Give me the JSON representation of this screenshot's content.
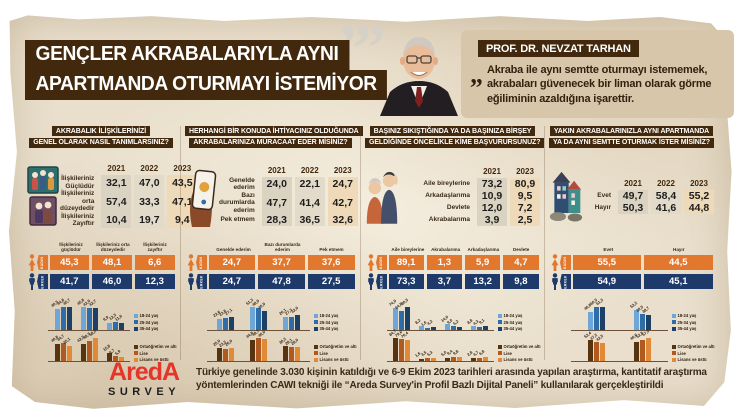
{
  "title": {
    "line1": "GENÇLER AKRABALARIYLA AYNI",
    "line2": "APARTMANDA OTURMAYI İSTEMİYOR"
  },
  "expert": {
    "name": "PROF. DR. NEVZAT TARHAN",
    "quote": "Akraba ile aynı semtte oturmayı istememek, akrabaları güvenecek bir liman olarak görme eğiliminin azaldığına işarettir."
  },
  "gender_labels": {
    "female": "KADIN",
    "male": "ERKEK"
  },
  "legend": {
    "age": [
      "18-24 yaş",
      "25-34 yaş",
      "35-44 yaş"
    ],
    "edu": [
      "Ortaöğretim ve altı",
      "Lise",
      "Lisans ve üstü"
    ]
  },
  "colors": {
    "brown": "#42280c",
    "female": "#e2772e",
    "male": "#1e3a6a",
    "age_series": [
      "#6ea6d8",
      "#2e6da8",
      "#1d4166"
    ],
    "edu_series": [
      "#58330f",
      "#b05a20",
      "#e08a38"
    ],
    "band_2021": "#dbd3c2",
    "band_2022": "#e3dbca",
    "band_2023": "#eed9b8",
    "logo_red": "#e5352b"
  },
  "chart_data": [
    {
      "type": "table",
      "title_lines": [
        "AKRABALIK İLİŞKİLERİNİZİ",
        "GENEL OLARAK NASIL TANIMLARSINIZ?"
      ],
      "icon": "family-photo-icon",
      "years": [
        "2021",
        "2022",
        "2023"
      ],
      "rows": [
        {
          "label": "İlişkileriniz Güçlüdür",
          "values": [
            32.1,
            47.0,
            43.5
          ]
        },
        {
          "label": "İlişkileriniz orta düzeydedir",
          "values": [
            57.4,
            33.3,
            47.1
          ]
        },
        {
          "label": "İlişkileriniz Zayıftır",
          "values": [
            10.4,
            19.7,
            9.4
          ]
        }
      ],
      "gender_columns": [
        "İlişkileriniz güçlüdür",
        "İlişkileriniz orta düzeydedir",
        "İlişkileriniz zayıftır"
      ],
      "female": [
        45.3,
        48.1,
        6.6
      ],
      "male": [
        41.7,
        46.0,
        12.3
      ],
      "age_groups": [
        [
          40.5,
          44.8,
          45.7
        ],
        [
          45.8,
          42.9,
          42.7
        ],
        [
          9.9,
          12.3,
          11.6
        ]
      ],
      "edu_groups": [
        [
          40.8,
          44.7,
          35.1
        ],
        [
          42.2,
          48.7,
          58.2
        ],
        [
          15.8,
          8.7,
          5.9
        ]
      ]
    },
    {
      "type": "table",
      "title_lines": [
        "HERHANGİ BİR KONUDA İHTİYACINIZ OLDUĞUNDA",
        "AKRABALARINIZA MÜRACAAT EDER MİSİNİZ?"
      ],
      "icon": "phone-hand-icon",
      "years": [
        "2021",
        "2022",
        "2023"
      ],
      "rows": [
        {
          "label": "Genelde ederim",
          "values": [
            24.0,
            22.1,
            24.7
          ]
        },
        {
          "label": "Bazı durumlarda ederim",
          "values": [
            47.7,
            41.4,
            42.7
          ]
        },
        {
          "label": "Pek etmem",
          "values": [
            28.3,
            36.5,
            32.6
          ]
        }
      ],
      "gender_columns": [
        "Genelde ederim",
        "Bazı durumlarda ederim",
        "Pek etmem"
      ],
      "female": [
        24.7,
        37.7,
        37.6
      ],
      "male": [
        24.7,
        47.8,
        27.5
      ],
      "age_groups": [
        [
          22.6,
          23.8,
          27.1
        ],
        [
          51.3,
          48.9,
          40.9
        ],
        [
          26.1,
          27.3,
          32.0
        ]
      ],
      "edu_groups": [
        [
          25.0,
          23.2,
          26.0
        ],
        [
          44.8,
          48.7,
          46.0
        ],
        [
          30.2,
          28.1,
          28.0
        ]
      ]
    },
    {
      "type": "table",
      "title_lines": [
        "BAŞINIZ SIKIŞTIĞINDA YA DA BAŞINIZA BİRŞEY",
        "GELDİĞİNDE ÖNCELİKLE KİME BAŞVURURSUNUZ?"
      ],
      "icon": "elderly-couple-icon",
      "years": [
        "2021",
        "2023"
      ],
      "rows": [
        {
          "label": "Aile bireylerine",
          "values": [
            73.2,
            80.9
          ]
        },
        {
          "label": "Arkadaşlarıma",
          "values": [
            10.9,
            9.5
          ]
        },
        {
          "label": "Devlete",
          "values": [
            12.0,
            7.2
          ]
        },
        {
          "label": "Akrabalarıma",
          "values": [
            3.9,
            2.5
          ]
        }
      ],
      "gender_columns": [
        "Aile bireylerine",
        "Akrabalarıma",
        "Arkadaşlarıma",
        "Devlete"
      ],
      "female": [
        89.1,
        1.3,
        5.9,
        4.7
      ],
      "male": [
        73.3,
        3.7,
        13.2,
        9.8
      ],
      "age_groups": [
        [
          74.9,
          64.8,
          80.5
        ],
        [
          8.2,
          1.6,
          4.2
        ],
        [
          14.0,
          9.0,
          5.2
        ],
        [
          8.8,
          4.3,
          9.1
        ]
      ],
      "edu_groups": [
        [
          84.7,
          79.6,
          76.4
        ],
        [
          1.6,
          3.5,
          5.3
        ],
        [
          5.0,
          9.4,
          9.8
        ],
        [
          2.8,
          4.7,
          6.8
        ]
      ]
    },
    {
      "type": "table",
      "title_lines": [
        "YAKIN AKRABALARINIZLA AYNI APARTMANDA",
        "YA DA AYNI SEMTTE OTURMAK İSTER MİSİNİZ?"
      ],
      "icon": "houses-icon",
      "years": [
        "2021",
        "2022",
        "2023"
      ],
      "rows": [
        {
          "label": "Evet",
          "values": [
            49.7,
            58.4,
            55.2
          ]
        },
        {
          "label": "Hayır",
          "values": [
            50.3,
            41.6,
            44.8
          ]
        }
      ],
      "gender_columns": [
        "Evet",
        "Hayır"
      ],
      "female": [
        55.5,
        44.5
      ],
      "male": [
        54.9,
        45.1
      ],
      "age_groups": [
        [
          46.8,
          60.5,
          61.3
        ],
        [
          53.2,
          39.5,
          38.7
        ]
      ],
      "edu_groups": [
        [
          53.4,
          47.2,
          42.5
        ],
        [
          46.6,
          52.8,
          57.5
        ]
      ]
    }
  ],
  "footer": {
    "logo_line1": "AredA",
    "logo_line2": "SURVEY",
    "source_text": "Türkiye genelinde 3.030 kişinin katıldığı ve 6-9 Ekim 2023 tarihleri arasında yapılan araştırma, kantitatif araştırma yöntemlerinden CAWI tekniği ile “Areda Survey'in Profil Bazlı Dijital Paneli” kullanılarak gerçekleştirildi"
  }
}
